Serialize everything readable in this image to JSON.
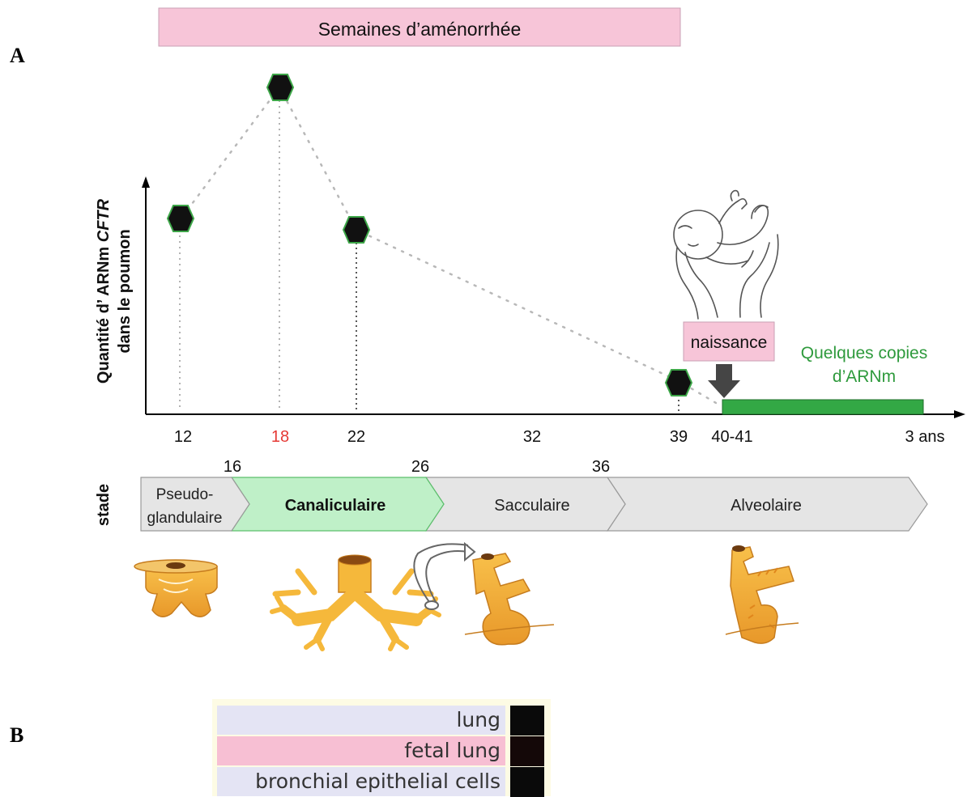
{
  "panel_a": {
    "label": "A",
    "header": "Semaines d’aménorrhée",
    "y_axis_line1_a": "Quantité d’ ARNm ",
    "y_axis_line1_gene": "CFTR",
    "y_axis_line2": "dans le poumon",
    "weeks": [
      "12",
      "18",
      "22",
      "32",
      "39",
      "40-41",
      "3 ans"
    ],
    "highlight_week": "18",
    "highlight_color": "#e53935",
    "points": [
      {
        "week": 12,
        "level": 0.62
      },
      {
        "week": 18,
        "level": 1.0
      },
      {
        "week": 22,
        "level": 0.59
      },
      {
        "week": 39,
        "level": 0.09
      }
    ],
    "birth_label": "naissance",
    "after_birth_label_1": "Quelques copies",
    "after_birth_label_2": "d’ARNm",
    "stage_axis_label": "stade",
    "stage_boundaries": [
      "16",
      "26",
      "36"
    ],
    "stages": [
      {
        "line1": "Pseudo-",
        "line2": "glandulaire"
      },
      {
        "name": "Canaliculaire"
      },
      {
        "name": "Sacculaire"
      },
      {
        "name": "Alveolaire"
      }
    ],
    "colors": {
      "header_fill": "#f7c5d8",
      "birth_fill": "#f7c5d8",
      "green_bar": "#33a845",
      "green_text": "#2e9a3c",
      "canalicular_fill": "#bff0c8",
      "stage_fill": "#e5e5e5",
      "lung_orange": "#f5b83b"
    }
  },
  "panel_b": {
    "label": "B",
    "rows": [
      {
        "name": "lung",
        "bg": "#e4e4f4",
        "heat": "#0a0a0a"
      },
      {
        "name": "fetal lung",
        "bg": "#f7bfd3",
        "heat": "#140808"
      },
      {
        "name": "bronchial epithelial cells",
        "bg": "#e4e4f4",
        "heat": "#0a0a0a"
      }
    ]
  }
}
